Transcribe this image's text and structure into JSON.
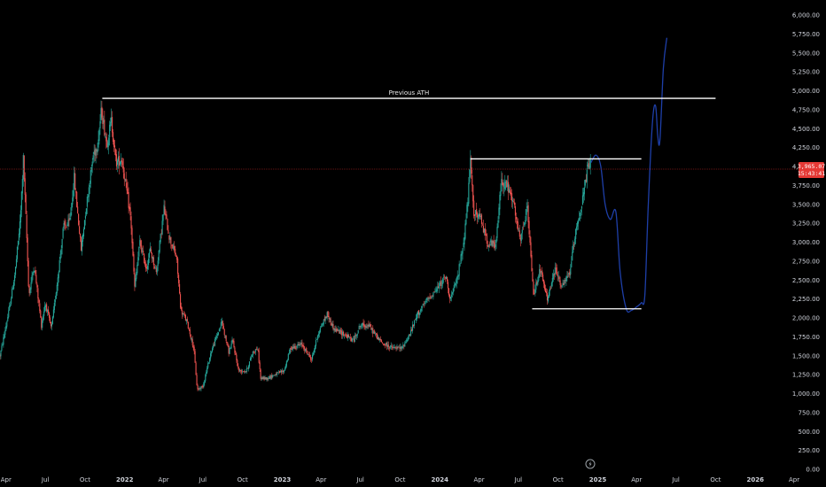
{
  "chart_data": {
    "type": "candlestick",
    "y_axis": {
      "min": 0,
      "max": 6000,
      "ticks": [
        "6,000.00",
        "5,750.00",
        "5,500.00",
        "5,250.00",
        "5,000.00",
        "4,750.00",
        "4,500.00",
        "4,250.00",
        "4,000.00",
        "3,750.00",
        "3,500.00",
        "3,250.00",
        "3,000.00",
        "2,750.00",
        "2,500.00",
        "2,250.00",
        "2,000.00",
        "1,750.00",
        "1,500.00",
        "1,250.00",
        "1,000.00",
        "750.00",
        "500.00",
        "250.00",
        "0.00"
      ]
    },
    "x_axis": {
      "start": "2021-03-18",
      "end": "2026-04-05",
      "ticks": [
        {
          "label": "Apr",
          "date": "2021-04-01",
          "bold": false
        },
        {
          "label": "Jul",
          "date": "2021-07-01",
          "bold": false
        },
        {
          "label": "Oct",
          "date": "2021-10-01",
          "bold": false
        },
        {
          "label": "2022",
          "date": "2022-01-01",
          "bold": true
        },
        {
          "label": "Apr",
          "date": "2022-04-01",
          "bold": false
        },
        {
          "label": "Jul",
          "date": "2022-07-01",
          "bold": false
        },
        {
          "label": "Oct",
          "date": "2022-10-01",
          "bold": false
        },
        {
          "label": "2023",
          "date": "2023-01-01",
          "bold": true
        },
        {
          "label": "Apr",
          "date": "2023-04-01",
          "bold": false
        },
        {
          "label": "Jul",
          "date": "2023-07-01",
          "bold": false
        },
        {
          "label": "Oct",
          "date": "2023-10-01",
          "bold": false
        },
        {
          "label": "2024",
          "date": "2024-01-01",
          "bold": true
        },
        {
          "label": "Apr",
          "date": "2024-04-01",
          "bold": false
        },
        {
          "label": "Jul",
          "date": "2024-07-01",
          "bold": false
        },
        {
          "label": "Oct",
          "date": "2024-10-01",
          "bold": false
        },
        {
          "label": "2025",
          "date": "2025-01-01",
          "bold": true
        },
        {
          "label": "Apr",
          "date": "2025-04-01",
          "bold": false
        },
        {
          "label": "Jul",
          "date": "2025-07-01",
          "bold": false
        },
        {
          "label": "Oct",
          "date": "2025-10-01",
          "bold": false
        },
        {
          "label": "2026",
          "date": "2026-01-01",
          "bold": true
        },
        {
          "label": "Apr",
          "date": "2026-04-01",
          "bold": false
        }
      ]
    },
    "price_path": [
      [
        "2021-03-18",
        1500
      ],
      [
        "2021-03-25",
        1700
      ],
      [
        "2021-04-08",
        2100
      ],
      [
        "2021-04-22",
        2600
      ],
      [
        "2021-05-04",
        3300
      ],
      [
        "2021-05-11",
        4100
      ],
      [
        "2021-05-18",
        3200
      ],
      [
        "2021-05-24",
        2300
      ],
      [
        "2021-06-05",
        2700
      ],
      [
        "2021-06-22",
        1900
      ],
      [
        "2021-07-01",
        2200
      ],
      [
        "2021-07-15",
        1850
      ],
      [
        "2021-07-28",
        2450
      ],
      [
        "2021-08-12",
        3200
      ],
      [
        "2021-08-26",
        3250
      ],
      [
        "2021-09-06",
        3850
      ],
      [
        "2021-09-22",
        2900
      ],
      [
        "2021-10-02",
        3400
      ],
      [
        "2021-10-20",
        4150
      ],
      [
        "2021-10-30",
        4300
      ],
      [
        "2021-11-08",
        4750
      ],
      [
        "2021-11-20",
        4300
      ],
      [
        "2021-12-01",
        4600
      ],
      [
        "2021-12-12",
        4050
      ],
      [
        "2021-12-25",
        4100
      ],
      [
        "2022-01-05",
        3700
      ],
      [
        "2022-01-15",
        3300
      ],
      [
        "2022-01-24",
        2400
      ],
      [
        "2022-02-05",
        3000
      ],
      [
        "2022-02-20",
        2650
      ],
      [
        "2022-03-01",
        2900
      ],
      [
        "2022-03-15",
        2600
      ],
      [
        "2022-04-02",
        3450
      ],
      [
        "2022-04-15",
        3050
      ],
      [
        "2022-05-01",
        2800
      ],
      [
        "2022-05-11",
        2100
      ],
      [
        "2022-05-25",
        1950
      ],
      [
        "2022-06-10",
        1600
      ],
      [
        "2022-06-18",
        1050
      ],
      [
        "2022-07-01",
        1100
      ],
      [
        "2022-07-20",
        1550
      ],
      [
        "2022-08-14",
        1950
      ],
      [
        "2022-08-30",
        1550
      ],
      [
        "2022-09-08",
        1700
      ],
      [
        "2022-09-22",
        1300
      ],
      [
        "2022-10-10",
        1300
      ],
      [
        "2022-10-25",
        1550
      ],
      [
        "2022-11-05",
        1600
      ],
      [
        "2022-11-12",
        1200
      ],
      [
        "2022-11-25",
        1200
      ],
      [
        "2022-12-15",
        1250
      ],
      [
        "2023-01-05",
        1300
      ],
      [
        "2023-01-20",
        1600
      ],
      [
        "2023-02-15",
        1650
      ],
      [
        "2023-03-10",
        1450
      ],
      [
        "2023-03-25",
        1800
      ],
      [
        "2023-04-15",
        2050
      ],
      [
        "2023-05-01",
        1850
      ],
      [
        "2023-05-20",
        1800
      ],
      [
        "2023-06-15",
        1700
      ],
      [
        "2023-06-30",
        1900
      ],
      [
        "2023-07-20",
        1900
      ],
      [
        "2023-08-15",
        1700
      ],
      [
        "2023-08-25",
        1650
      ],
      [
        "2023-09-15",
        1600
      ],
      [
        "2023-10-05",
        1600
      ],
      [
        "2023-10-25",
        1800
      ],
      [
        "2023-11-10",
        2050
      ],
      [
        "2023-12-05",
        2250
      ],
      [
        "2023-12-28",
        2400
      ],
      [
        "2024-01-15",
        2550
      ],
      [
        "2024-01-25",
        2250
      ],
      [
        "2024-02-10",
        2500
      ],
      [
        "2024-02-25",
        3000
      ],
      [
        "2024-03-05",
        3500
      ],
      [
        "2024-03-12",
        4050
      ],
      [
        "2024-03-20",
        3400
      ],
      [
        "2024-04-05",
        3300
      ],
      [
        "2024-04-20",
        3000
      ],
      [
        "2024-05-10",
        2950
      ],
      [
        "2024-05-22",
        3800
      ],
      [
        "2024-06-05",
        3750
      ],
      [
        "2024-06-20",
        3500
      ],
      [
        "2024-07-05",
        3000
      ],
      [
        "2024-07-22",
        3450
      ],
      [
        "2024-08-05",
        2300
      ],
      [
        "2024-08-20",
        2650
      ],
      [
        "2024-09-06",
        2250
      ],
      [
        "2024-09-25",
        2650
      ],
      [
        "2024-10-10",
        2400
      ],
      [
        "2024-10-28",
        2600
      ],
      [
        "2024-11-12",
        3200
      ],
      [
        "2024-11-25",
        3500
      ],
      [
        "2024-12-08",
        3950
      ],
      [
        "2024-12-16",
        4050
      ]
    ],
    "projection_path": [
      [
        "2024-12-16",
        4050
      ],
      [
        "2024-12-28",
        4150
      ],
      [
        "2025-01-08",
        4000
      ],
      [
        "2025-01-18",
        3500
      ],
      [
        "2025-01-30",
        3300
      ],
      [
        "2025-02-12",
        3400
      ],
      [
        "2025-02-22",
        2600
      ],
      [
        "2025-03-08",
        2120
      ],
      [
        "2025-03-20",
        2100
      ],
      [
        "2025-04-02",
        2150
      ],
      [
        "2025-04-12",
        2200
      ],
      [
        "2025-04-20",
        2300
      ],
      [
        "2025-04-28",
        3500
      ],
      [
        "2025-05-08",
        4600
      ],
      [
        "2025-05-15",
        4800
      ],
      [
        "2025-05-20",
        4400
      ],
      [
        "2025-05-25",
        4350
      ],
      [
        "2025-06-02",
        5300
      ],
      [
        "2025-06-10",
        5700
      ]
    ],
    "annotations": [
      {
        "type": "hline",
        "value": 4900,
        "start": "2021-11-10",
        "end": "2025-10-01",
        "label": "Previous ATH"
      },
      {
        "type": "hline",
        "value": 4100,
        "start": "2024-03-12",
        "end": "2025-04-12",
        "label": ""
      },
      {
        "type": "hline",
        "value": 2120,
        "start": "2024-08-02",
        "end": "2025-04-12",
        "label": ""
      }
    ],
    "current_price": {
      "value": 3965.07,
      "label": "3,965.07",
      "countdown": "15:43:41"
    },
    "colors": {
      "background": "#000000",
      "up": "#26a69a",
      "down": "#ef5350",
      "projection": "#1e3fa8",
      "annotation": "#ffffff",
      "price_line": "#8b1a1a",
      "price_tag": "#e53935",
      "axis_text": "#d1d4dc"
    }
  }
}
